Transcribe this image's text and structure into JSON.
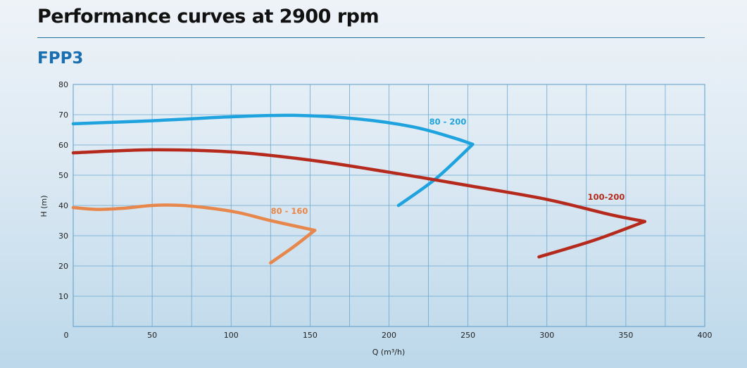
{
  "header": {
    "title": "Performance curves at 2900 rpm",
    "subtitle": "FPP3"
  },
  "chart_data": {
    "type": "line",
    "title": "Performance curves at 2900 rpm",
    "subtitle": "FPP3",
    "xlabel": "Q (m³/h)",
    "ylabel": "H (m)",
    "xlim": [
      0,
      400
    ],
    "ylim": [
      0,
      80
    ],
    "xticks": [
      0,
      50,
      100,
      150,
      200,
      250,
      300,
      350,
      400
    ],
    "yticks": [
      10,
      20,
      30,
      40,
      50,
      60,
      70,
      80
    ],
    "grid": true,
    "series": [
      {
        "name": "80 - 200",
        "color": "#1ea3df",
        "points": [
          [
            0,
            67
          ],
          [
            50,
            68
          ],
          [
            100,
            69.3
          ],
          [
            140,
            69.8
          ],
          [
            180,
            68.6
          ],
          [
            215,
            66
          ],
          [
            240,
            62.5
          ],
          [
            253,
            60.2
          ],
          [
            230,
            49
          ],
          [
            206,
            40
          ]
        ]
      },
      {
        "name": "80 - 160",
        "color": "#e8874c",
        "points": [
          [
            0,
            39.3
          ],
          [
            15,
            38.7
          ],
          [
            30,
            39
          ],
          [
            50,
            40
          ],
          [
            65,
            40.1
          ],
          [
            85,
            39.2
          ],
          [
            105,
            37.6
          ],
          [
            125,
            35
          ],
          [
            153,
            31.8
          ],
          [
            140,
            26.5
          ],
          [
            125,
            21
          ]
        ]
      },
      {
        "name": "100-200",
        "color": "#b52a1c",
        "points": [
          [
            0,
            57.4
          ],
          [
            50,
            58.4
          ],
          [
            100,
            57.7
          ],
          [
            150,
            55
          ],
          [
            200,
            51
          ],
          [
            250,
            46.6
          ],
          [
            300,
            42
          ],
          [
            340,
            37
          ],
          [
            362,
            34.7
          ],
          [
            330,
            28.5
          ],
          [
            295,
            23
          ]
        ]
      }
    ]
  }
}
